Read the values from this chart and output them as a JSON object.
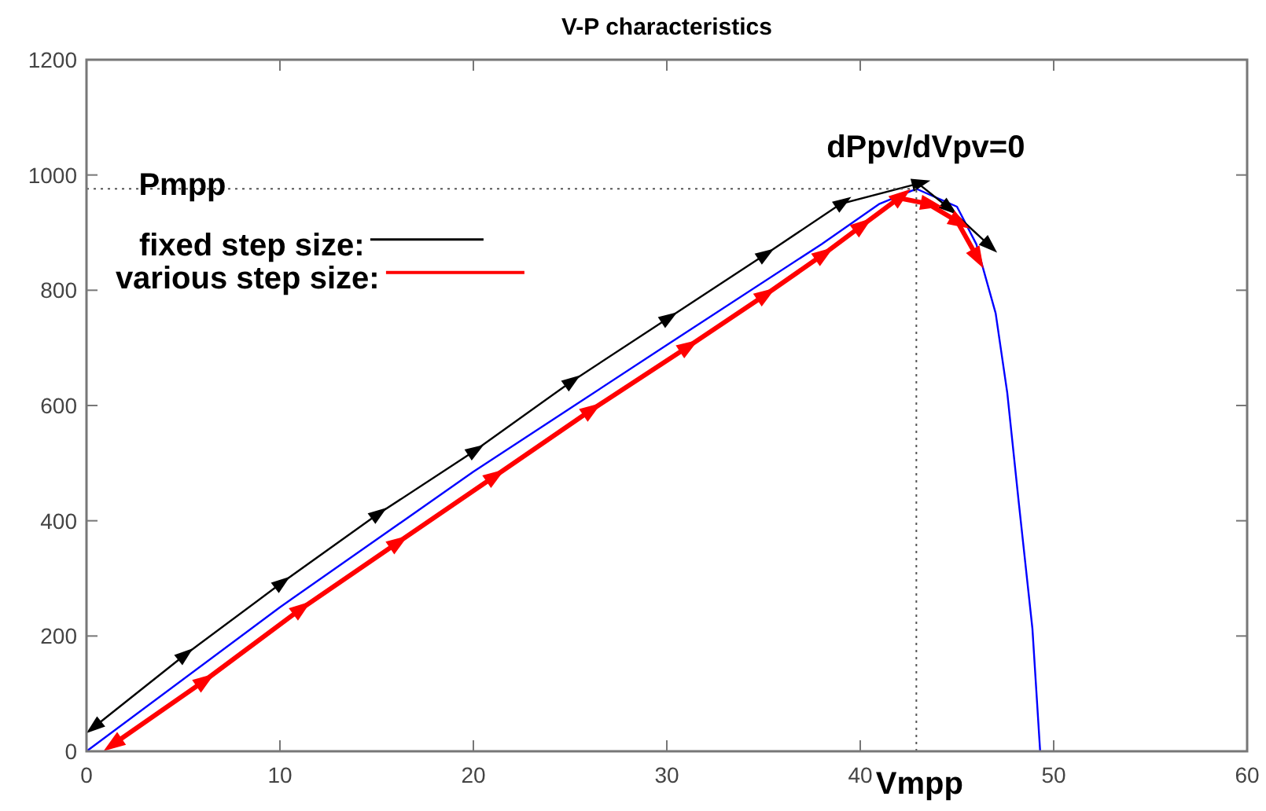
{
  "chart_data": {
    "type": "line",
    "title": "V-P characteristics",
    "xlim": [
      0,
      60
    ],
    "xticks": [
      0,
      10,
      20,
      30,
      40,
      50,
      60
    ],
    "ylim": [
      0,
      1200
    ],
    "yticks": [
      0,
      200,
      400,
      600,
      800,
      1000,
      1200
    ],
    "grid": false,
    "legend": "top left",
    "line_style": "solid",
    "series": [
      {
        "color": "#0000ff",
        "x": [
          0,
          10,
          20,
          30,
          38,
          41,
          42.9,
          45,
          46,
          47,
          47.6,
          48.2,
          48.9,
          49.3
        ],
        "values": [
          0,
          250,
          485,
          705,
          880,
          950,
          976,
          945,
          880,
          760,
          622,
          430,
          213,
          0
        ]
      },
      {
        "name": "fixed step size:",
        "color": "#000000",
        "marker": "triangle",
        "x": [
          0.5,
          5,
          10,
          15,
          20,
          25,
          30,
          35,
          39,
          43,
          44.5,
          46.6
        ],
        "values": [
          45,
          165,
          290,
          410,
          520,
          640,
          750,
          860,
          950,
          985,
          945,
          880
        ]
      },
      {
        "name": "various step size:",
        "color": "#ff0000",
        "marker": "triangle",
        "x": [
          1.5,
          6,
          11,
          16,
          21,
          26,
          31,
          35,
          38,
          40,
          42,
          43.5,
          45,
          46
        ],
        "values": [
          15,
          120,
          245,
          360,
          475,
          590,
          700,
          790,
          860,
          910,
          960,
          950,
          920,
          860
        ]
      }
    ],
    "ref_lines": [
      {
        "axis": "y",
        "value": 976,
        "label": "Pmpp",
        "line_style": "dotted",
        "color": "#555555"
      },
      {
        "axis": "x",
        "value": 42.9,
        "label": "Vmpp",
        "line_style": "dotted",
        "color": "#555555"
      }
    ],
    "annotations": [
      {
        "text": "dPpv/dVpv=0",
        "x": 42.9,
        "y": 976
      }
    ]
  }
}
